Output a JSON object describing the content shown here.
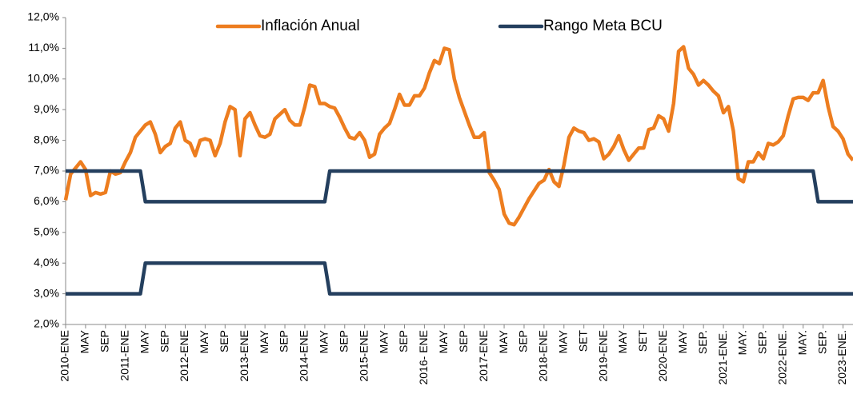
{
  "chart_data": {
    "type": "line",
    "legend": "top",
    "ylim": [
      2,
      12
    ],
    "yticks": [
      {
        "value": 2,
        "label": "2,0%"
      },
      {
        "value": 3,
        "label": "3,0%"
      },
      {
        "value": 4,
        "label": "4,0%"
      },
      {
        "value": 5,
        "label": "5,0%"
      },
      {
        "value": 6,
        "label": "6,0%"
      },
      {
        "value": 7,
        "label": "7,0%"
      },
      {
        "value": 8,
        "label": "8,0%"
      },
      {
        "value": 9,
        "label": "9,0%"
      },
      {
        "value": 10,
        "label": "10,0%"
      },
      {
        "value": 11,
        "label": "11,0%"
      },
      {
        "value": 12,
        "label": "12,0%"
      }
    ],
    "categories": [
      "2010-ENE",
      null,
      null,
      null,
      "MAY",
      null,
      null,
      null,
      "SEP",
      null,
      null,
      null,
      "2011-ENE",
      null,
      null,
      null,
      "MAY",
      null,
      null,
      null,
      "SEP",
      null,
      null,
      null,
      "2012-ENE",
      null,
      null,
      null,
      "MAY",
      null,
      null,
      null,
      "SEP",
      null,
      null,
      null,
      "2013-ENE",
      null,
      null,
      null,
      "MAY",
      null,
      null,
      null,
      "SEP",
      null,
      null,
      null,
      "2014-ENE",
      null,
      null,
      null,
      "MAY",
      null,
      null,
      null,
      "SEP",
      null,
      null,
      null,
      "2015-ENE",
      null,
      null,
      null,
      "MAY",
      null,
      null,
      null,
      "SEP",
      null,
      null,
      null,
      "2016- ENE",
      null,
      null,
      null,
      "MAY",
      null,
      null,
      null,
      "SEP",
      null,
      null,
      null,
      "2017-ENE",
      null,
      null,
      null,
      "MAY",
      null,
      null,
      null,
      "SEP",
      null,
      null,
      null,
      "2018-ENE",
      null,
      null,
      null,
      "MAY",
      null,
      null,
      null,
      "SET",
      null,
      null,
      null,
      "2019-ENE",
      null,
      null,
      null,
      "MAY",
      null,
      null,
      null,
      "SET",
      null,
      null,
      null,
      "2020-ENE",
      null,
      null,
      null,
      "MAY",
      null,
      null,
      null,
      "SEP.",
      null,
      null,
      null,
      "2021-ENE.",
      null,
      null,
      null,
      "MAY.",
      null,
      null,
      null,
      "SEP.",
      null,
      null,
      null,
      "2022-ENE.",
      null,
      null,
      null,
      "MAY.",
      null,
      null,
      null,
      "SEP.",
      null,
      null,
      null,
      "2023-ENE.",
      null,
      null
    ],
    "series": [
      {
        "name": "Inflación Anual",
        "color": "#ED7D1F",
        "values": [
          6.05,
          6.9,
          7.1,
          7.3,
          7.05,
          6.2,
          6.3,
          6.25,
          6.3,
          7.0,
          6.9,
          6.95,
          7.3,
          7.6,
          8.1,
          8.3,
          8.5,
          8.6,
          8.2,
          7.6,
          7.8,
          7.9,
          8.4,
          8.6,
          8.0,
          7.9,
          7.5,
          8.0,
          8.05,
          8.0,
          7.5,
          7.9,
          8.6,
          9.1,
          9.0,
          7.5,
          8.7,
          8.9,
          8.5,
          8.15,
          8.1,
          8.2,
          8.7,
          8.85,
          9.0,
          8.65,
          8.5,
          8.5,
          9.1,
          9.8,
          9.75,
          9.2,
          9.2,
          9.1,
          9.05,
          8.75,
          8.4,
          8.1,
          8.05,
          8.25,
          8.0,
          7.45,
          7.55,
          8.2,
          8.4,
          8.55,
          9.0,
          9.5,
          9.15,
          9.15,
          9.45,
          9.45,
          9.7,
          10.2,
          10.6,
          10.5,
          11.0,
          10.95,
          10.0,
          9.4,
          8.95,
          8.5,
          8.1,
          8.1,
          8.25,
          6.95,
          6.7,
          6.4,
          5.6,
          5.3,
          5.25,
          5.5,
          5.8,
          6.1,
          6.35,
          6.6,
          6.7,
          7.05,
          6.65,
          6.5,
          7.2,
          8.1,
          8.4,
          8.3,
          8.25,
          8.0,
          8.05,
          7.95,
          7.4,
          7.55,
          7.8,
          8.15,
          7.7,
          7.35,
          7.55,
          7.75,
          7.75,
          8.35,
          8.4,
          8.8,
          8.7,
          8.3,
          9.2,
          10.9,
          11.05,
          10.35,
          10.15,
          9.8,
          9.95,
          9.8,
          9.6,
          9.45,
          8.9,
          9.1,
          8.3,
          6.75,
          6.65,
          7.3,
          7.3,
          7.6,
          7.4,
          7.9,
          7.85,
          7.95,
          8.15,
          8.8,
          9.35,
          9.4,
          9.4,
          9.3,
          9.55,
          9.55,
          9.95,
          9.1,
          8.45,
          8.3,
          8.05,
          7.55,
          7.35
        ]
      },
      {
        "name": "Rango Meta BCU",
        "color": "#243F5E",
        "values": [
          7,
          7,
          7,
          7,
          7,
          7,
          7,
          7,
          7,
          7,
          7,
          7,
          7,
          7,
          7,
          7,
          6,
          6,
          6,
          6,
          6,
          6,
          6,
          6,
          6,
          6,
          6,
          6,
          6,
          6,
          6,
          6,
          6,
          6,
          6,
          6,
          6,
          6,
          6,
          6,
          6,
          6,
          6,
          6,
          6,
          6,
          6,
          6,
          6,
          6,
          6,
          6,
          6,
          7,
          7,
          7,
          7,
          7,
          7,
          7,
          7,
          7,
          7,
          7,
          7,
          7,
          7,
          7,
          7,
          7,
          7,
          7,
          7,
          7,
          7,
          7,
          7,
          7,
          7,
          7,
          7,
          7,
          7,
          7,
          7,
          7,
          7,
          7,
          7,
          7,
          7,
          7,
          7,
          7,
          7,
          7,
          7,
          7,
          7,
          7,
          7,
          7,
          7,
          7,
          7,
          7,
          7,
          7,
          7,
          7,
          7,
          7,
          7,
          7,
          7,
          7,
          7,
          7,
          7,
          7,
          7,
          7,
          7,
          7,
          7,
          7,
          7,
          7,
          7,
          7,
          7,
          7,
          7,
          7,
          7,
          7,
          7,
          7,
          7,
          7,
          7,
          7,
          7,
          7,
          7,
          7,
          7,
          7,
          7,
          7,
          7,
          6,
          6,
          6,
          6,
          6,
          6,
          6,
          6
        ]
      },
      {
        "color": "#243F5E",
        "values": [
          3,
          3,
          3,
          3,
          3,
          3,
          3,
          3,
          3,
          3,
          3,
          3,
          3,
          3,
          3,
          3,
          4,
          4,
          4,
          4,
          4,
          4,
          4,
          4,
          4,
          4,
          4,
          4,
          4,
          4,
          4,
          4,
          4,
          4,
          4,
          4,
          4,
          4,
          4,
          4,
          4,
          4,
          4,
          4,
          4,
          4,
          4,
          4,
          4,
          4,
          4,
          4,
          4,
          3,
          3,
          3,
          3,
          3,
          3,
          3,
          3,
          3,
          3,
          3,
          3,
          3,
          3,
          3,
          3,
          3,
          3,
          3,
          3,
          3,
          3,
          3,
          3,
          3,
          3,
          3,
          3,
          3,
          3,
          3,
          3,
          3,
          3,
          3,
          3,
          3,
          3,
          3,
          3,
          3,
          3,
          3,
          3,
          3,
          3,
          3,
          3,
          3,
          3,
          3,
          3,
          3,
          3,
          3,
          3,
          3,
          3,
          3,
          3,
          3,
          3,
          3,
          3,
          3,
          3,
          3,
          3,
          3,
          3,
          3,
          3,
          3,
          3,
          3,
          3,
          3,
          3,
          3,
          3,
          3,
          3,
          3,
          3,
          3,
          3,
          3,
          3,
          3,
          3,
          3,
          3,
          3,
          3,
          3,
          3,
          3,
          3,
          3,
          3,
          3,
          3,
          3,
          3,
          3,
          3
        ]
      }
    ]
  }
}
